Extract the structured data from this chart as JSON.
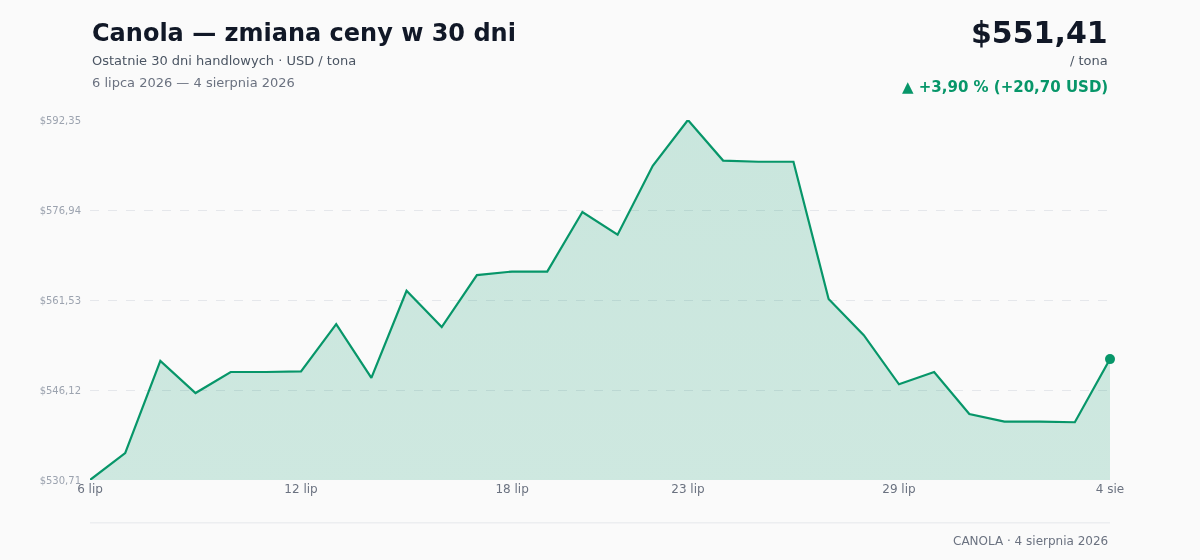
{
  "chart_data": {
    "type": "area",
    "title": "Canola — zmiana ceny w 30 dni",
    "subtitle": "Ostatnie 30 dni handlowych · USD / tona",
    "annotations": [
      "6 lipca 2026 — 4 sierpnia 2026",
      "$551,41",
      "/ tona",
      "▲ +3,90 % (+20,70 USD)",
      "CANOLA · 4 sierpnia 2026"
    ],
    "x": [
      "2026-07-06",
      "2026-07-07",
      "2026-07-08",
      "2026-07-09",
      "2026-07-10",
      "2026-07-11",
      "2026-07-12",
      "2026-07-13",
      "2026-07-14",
      "2026-07-15",
      "2026-07-16",
      "2026-07-17",
      "2026-07-18",
      "2026-07-19",
      "2026-07-20",
      "2026-07-21",
      "2026-07-22",
      "2026-07-23",
      "2026-07-24",
      "2026-07-25",
      "2026-07-26",
      "2026-07-27",
      "2026-07-28",
      "2026-07-29",
      "2026-07-30",
      "2026-07-31",
      "2026-08-01",
      "2026-08-02",
      "2026-08-03",
      "2026-08-04"
    ],
    "series": [
      {
        "color": "#079669",
        "values": [
          530.71,
          535.3,
          551.1,
          545.6,
          549.2,
          549.2,
          549.3,
          557.4,
          548.2,
          563.1,
          556.9,
          565.8,
          566.4,
          566.4,
          576.6,
          572.7,
          584.5,
          592.35,
          585.4,
          585.2,
          585.2,
          561.7,
          555.5,
          547.1,
          549.2,
          542.0,
          540.7,
          540.7,
          540.6,
          551.41
        ]
      },
      {
        "type": "scatter",
        "color": "#079669",
        "marker": "circle",
        "x": [
          "2026-08-04"
        ],
        "values": [
          551.41
        ]
      }
    ],
    "xlim": [
      "2026-07-06",
      "2026-08-04"
    ],
    "xticks": [
      {
        "value": "2026-07-06",
        "label": "6 lip"
      },
      {
        "value": "2026-07-12",
        "label": "12 lip"
      },
      {
        "value": "2026-07-18",
        "label": "18 lip"
      },
      {
        "value": "2026-07-23",
        "label": "23 lip"
      },
      {
        "value": "2026-07-29",
        "label": "29 lip"
      },
      {
        "value": "2026-08-04",
        "label": "4 sie"
      }
    ],
    "ylim": [
      530.71,
      592.35
    ],
    "yticks": [
      {
        "value": 530.71,
        "label": "$530,71"
      },
      {
        "value": 546.12,
        "label": "$546,12"
      },
      {
        "value": 561.53,
        "label": "$561,53"
      },
      {
        "value": 576.94,
        "label": "$576,94"
      },
      {
        "value": 592.35,
        "label": "$592,35"
      }
    ],
    "grid": "y",
    "marker": "none",
    "line_style": "solid"
  }
}
